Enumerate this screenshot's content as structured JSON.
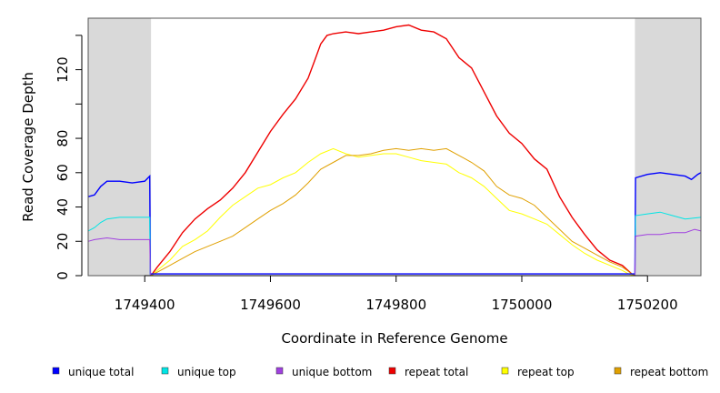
{
  "chart_data": {
    "type": "line",
    "title": "",
    "xlabel": "Coordinate in Reference Genome",
    "ylabel": "Read Coverage Depth",
    "xlim": [
      1749310,
      1750285
    ],
    "ylim": [
      0,
      150
    ],
    "x_ticks": [
      1749400,
      1749600,
      1749800,
      1750000,
      1750200
    ],
    "x_tick_labels": [
      "1749400",
      "1749600",
      "1749800",
      "1750000",
      "1750200"
    ],
    "y_ticks": [
      0,
      20,
      40,
      60,
      80,
      100,
      120,
      140
    ],
    "y_tick_labels": [
      "0",
      "20",
      "40",
      "60",
      "80",
      "",
      "120",
      ""
    ],
    "shaded_regions": [
      [
        1749310,
        1749410
      ],
      [
        1750180,
        1750285
      ]
    ],
    "shade_color": "#d9d9d9",
    "grid": false,
    "legend_position": "bottom",
    "series": [
      {
        "name": "unique total",
        "color": "#0000ff",
        "points": [
          [
            1749310,
            46
          ],
          [
            1749320,
            47
          ],
          [
            1749330,
            52
          ],
          [
            1749340,
            55
          ],
          [
            1749360,
            55
          ],
          [
            1749380,
            54
          ],
          [
            1749400,
            55
          ],
          [
            1749408,
            58
          ],
          [
            1749409,
            1
          ],
          [
            1749700,
            1
          ],
          [
            1750180,
            1
          ],
          [
            1750181,
            57
          ],
          [
            1750200,
            59
          ],
          [
            1750220,
            60
          ],
          [
            1750240,
            59
          ],
          [
            1750260,
            58
          ],
          [
            1750270,
            56
          ],
          [
            1750280,
            59
          ],
          [
            1750285,
            60
          ]
        ]
      },
      {
        "name": "unique top",
        "color": "#00e5e5",
        "points": [
          [
            1749310,
            26
          ],
          [
            1749320,
            28
          ],
          [
            1749330,
            31
          ],
          [
            1749340,
            33
          ],
          [
            1749360,
            34
          ],
          [
            1749380,
            34
          ],
          [
            1749408,
            34
          ],
          [
            1749409,
            0
          ],
          [
            1750180,
            0
          ],
          [
            1750181,
            35
          ],
          [
            1750200,
            36
          ],
          [
            1750220,
            37
          ],
          [
            1750240,
            35
          ],
          [
            1750260,
            33
          ],
          [
            1750285,
            34
          ]
        ]
      },
      {
        "name": "unique bottom",
        "color": "#a040e0",
        "points": [
          [
            1749310,
            20
          ],
          [
            1749320,
            21
          ],
          [
            1749340,
            22
          ],
          [
            1749360,
            21
          ],
          [
            1749380,
            21
          ],
          [
            1749408,
            21
          ],
          [
            1749409,
            0
          ],
          [
            1750180,
            0
          ],
          [
            1750181,
            23
          ],
          [
            1750200,
            24
          ],
          [
            1750220,
            24
          ],
          [
            1750240,
            25
          ],
          [
            1750260,
            25
          ],
          [
            1750275,
            27
          ],
          [
            1750285,
            26
          ]
        ]
      },
      {
        "name": "repeat total",
        "color": "#ee0000",
        "points": [
          [
            1749410,
            0
          ],
          [
            1749420,
            5
          ],
          [
            1749440,
            14
          ],
          [
            1749460,
            25
          ],
          [
            1749480,
            33
          ],
          [
            1749500,
            39
          ],
          [
            1749520,
            44
          ],
          [
            1749540,
            51
          ],
          [
            1749560,
            60
          ],
          [
            1749580,
            72
          ],
          [
            1749600,
            84
          ],
          [
            1749620,
            94
          ],
          [
            1749640,
            103
          ],
          [
            1749660,
            115
          ],
          [
            1749670,
            125
          ],
          [
            1749680,
            135
          ],
          [
            1749690,
            140
          ],
          [
            1749700,
            141
          ],
          [
            1749720,
            142
          ],
          [
            1749740,
            141
          ],
          [
            1749760,
            142
          ],
          [
            1749780,
            143
          ],
          [
            1749800,
            145
          ],
          [
            1749820,
            146
          ],
          [
            1749840,
            143
          ],
          [
            1749860,
            142
          ],
          [
            1749880,
            138
          ],
          [
            1749900,
            127
          ],
          [
            1749920,
            121
          ],
          [
            1749940,
            107
          ],
          [
            1749960,
            93
          ],
          [
            1749980,
            83
          ],
          [
            1750000,
            77
          ],
          [
            1750020,
            68
          ],
          [
            1750040,
            62
          ],
          [
            1750060,
            46
          ],
          [
            1750080,
            34
          ],
          [
            1750100,
            24
          ],
          [
            1750120,
            15
          ],
          [
            1750140,
            9
          ],
          [
            1750160,
            6
          ],
          [
            1750175,
            1
          ],
          [
            1750180,
            0
          ]
        ]
      },
      {
        "name": "repeat top",
        "color": "#ffff00",
        "points": [
          [
            1749410,
            0
          ],
          [
            1749420,
            3
          ],
          [
            1749440,
            9
          ],
          [
            1749460,
            17
          ],
          [
            1749480,
            21
          ],
          [
            1749500,
            26
          ],
          [
            1749520,
            34
          ],
          [
            1749540,
            41
          ],
          [
            1749560,
            46
          ],
          [
            1749580,
            51
          ],
          [
            1749600,
            53
          ],
          [
            1749620,
            57
          ],
          [
            1749640,
            60
          ],
          [
            1749660,
            66
          ],
          [
            1749680,
            71
          ],
          [
            1749700,
            74
          ],
          [
            1749720,
            71
          ],
          [
            1749740,
            69
          ],
          [
            1749760,
            70
          ],
          [
            1749780,
            71
          ],
          [
            1749800,
            71
          ],
          [
            1749820,
            69
          ],
          [
            1749840,
            67
          ],
          [
            1749860,
            66
          ],
          [
            1749880,
            65
          ],
          [
            1749900,
            60
          ],
          [
            1749920,
            57
          ],
          [
            1749940,
            52
          ],
          [
            1749960,
            45
          ],
          [
            1749980,
            38
          ],
          [
            1750000,
            36
          ],
          [
            1750020,
            33
          ],
          [
            1750040,
            30
          ],
          [
            1750060,
            24
          ],
          [
            1750080,
            18
          ],
          [
            1750100,
            13
          ],
          [
            1750120,
            9
          ],
          [
            1750140,
            6
          ],
          [
            1750160,
            3
          ],
          [
            1750170,
            1
          ],
          [
            1750180,
            0
          ]
        ]
      },
      {
        "name": "repeat bottom",
        "color": "#e0a000",
        "points": [
          [
            1749410,
            0
          ],
          [
            1749420,
            2
          ],
          [
            1749440,
            6
          ],
          [
            1749460,
            10
          ],
          [
            1749480,
            14
          ],
          [
            1749500,
            17
          ],
          [
            1749520,
            20
          ],
          [
            1749540,
            23
          ],
          [
            1749560,
            28
          ],
          [
            1749580,
            33
          ],
          [
            1749600,
            38
          ],
          [
            1749620,
            42
          ],
          [
            1749640,
            47
          ],
          [
            1749660,
            54
          ],
          [
            1749680,
            62
          ],
          [
            1749700,
            66
          ],
          [
            1749720,
            70
          ],
          [
            1749740,
            70
          ],
          [
            1749760,
            71
          ],
          [
            1749780,
            73
          ],
          [
            1749800,
            74
          ],
          [
            1749820,
            73
          ],
          [
            1749840,
            74
          ],
          [
            1749860,
            73
          ],
          [
            1749880,
            74
          ],
          [
            1749900,
            70
          ],
          [
            1749920,
            66
          ],
          [
            1749940,
            61
          ],
          [
            1749960,
            52
          ],
          [
            1749980,
            47
          ],
          [
            1750000,
            45
          ],
          [
            1750020,
            41
          ],
          [
            1750040,
            34
          ],
          [
            1750060,
            27
          ],
          [
            1750080,
            20
          ],
          [
            1750100,
            16
          ],
          [
            1750120,
            12
          ],
          [
            1750140,
            8
          ],
          [
            1750160,
            5
          ],
          [
            1750175,
            1
          ],
          [
            1750180,
            0
          ]
        ]
      }
    ]
  }
}
